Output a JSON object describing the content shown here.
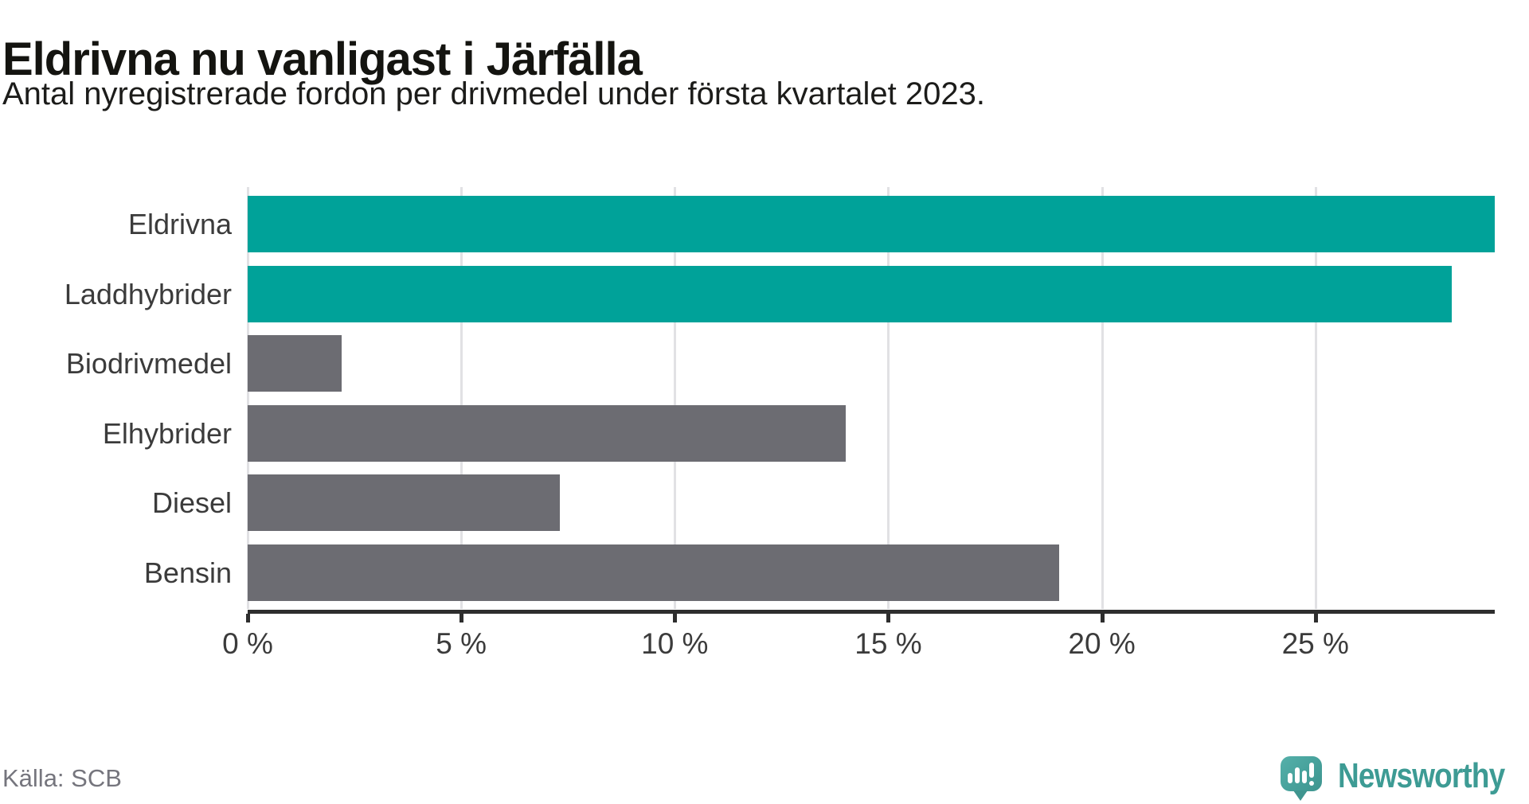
{
  "header": {
    "title": "Eldrivna nu vanligast i Järfälla",
    "subtitle": "Antal nyregistrerade fordon per drivmedel under första kvartalet 2023."
  },
  "chart_data": {
    "type": "bar",
    "orientation": "horizontal",
    "title": "Eldrivna nu vanligast i Järfälla",
    "subtitle": "Antal nyregistrerade fordon per drivmedel under första kvartalet 2023.",
    "categories": [
      "Eldrivna",
      "Laddhybrider",
      "Biodrivmedel",
      "Elhybrider",
      "Diesel",
      "Bensin"
    ],
    "values": [
      29.2,
      28.2,
      2.2,
      14,
      7.3,
      19
    ],
    "unit": "%",
    "highlighted": [
      true,
      true,
      false,
      false,
      false,
      false
    ],
    "x_ticks": [
      0,
      5,
      10,
      15,
      20,
      25
    ],
    "x_tick_labels": [
      "0 %",
      "5 %",
      "10 %",
      "15 %",
      "20 %",
      "25 %"
    ],
    "xlim": [
      0,
      29.2
    ],
    "grid": true,
    "legend": false,
    "colors": {
      "highlight": "#00A299",
      "default": "#6C6C72",
      "grid": "#E1E1E4",
      "axis": "#2E2E2E",
      "label": "#3B3B3B"
    }
  },
  "footer": {
    "source": "Källa: SCB",
    "brand": "Newsworthy",
    "brand_color": "#3D9B94"
  }
}
